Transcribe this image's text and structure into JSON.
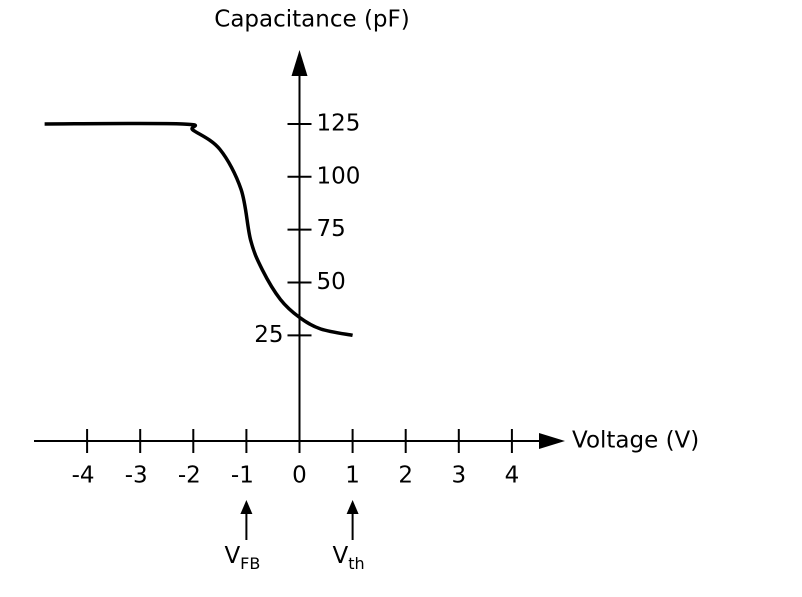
{
  "chart_data": {
    "type": "line",
    "y_label": "Capacitance (pF)",
    "x_label": "Voltage (V)",
    "x": [
      -4.8,
      -2.2,
      -2,
      -1.5,
      -1.1,
      -0.92,
      -0.7,
      -0.36,
      0,
      0.4,
      1
    ],
    "values": [
      125,
      125,
      122,
      113,
      94,
      70,
      56,
      42,
      33.5,
      28,
      25
    ],
    "color": "#000000",
    "xlim": [
      -5,
      5
    ],
    "ylim": [
      -25,
      160
    ],
    "xticks": [
      -4,
      -3,
      -2,
      -1,
      0,
      1,
      2,
      3,
      4
    ],
    "yticks": [
      25,
      50,
      75,
      100,
      125
    ],
    "annotations": [
      {
        "text": "V",
        "sub": "FB",
        "x": -1
      },
      {
        "text": "V",
        "sub": "th",
        "x": 1
      }
    ]
  }
}
